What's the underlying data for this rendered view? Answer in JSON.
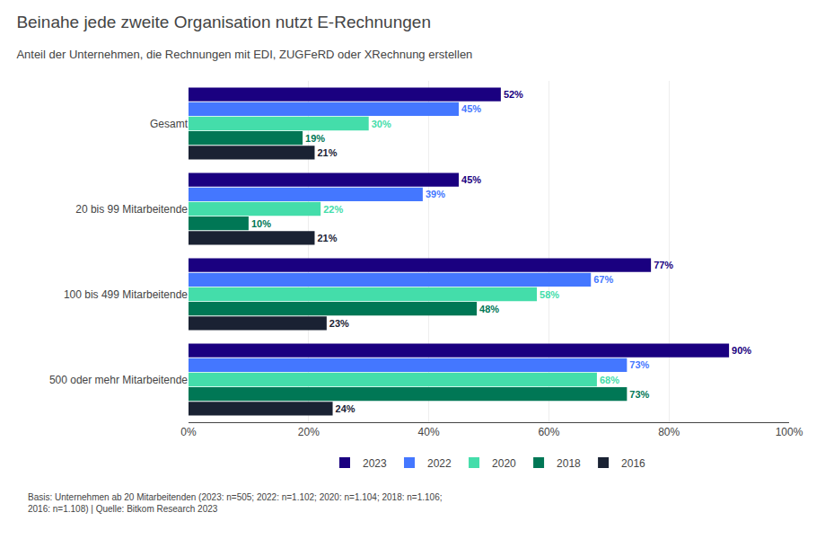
{
  "chart_data": {
    "type": "bar",
    "orientation": "horizontal",
    "title": "Beinahe jede zweite Organisation nutzt E-Rechnungen",
    "subtitle": "Anteil der Unternehmen, die Rechnungen mit EDI, ZUGFeRD oder XRechnung erstellen",
    "categories": [
      "Gesamt",
      "20 bis 99 Mitarbeitende",
      "100 bis 499 Mitarbeitende",
      "500 oder mehr Mitarbeitende"
    ],
    "series": [
      {
        "name": "2023",
        "color": "#1a0080",
        "values": [
          52,
          45,
          77,
          90
        ],
        "value_labels": [
          "52%",
          "45%",
          "77%",
          "90%"
        ]
      },
      {
        "name": "2022",
        "color": "#4477ff",
        "values": [
          45,
          39,
          67,
          73
        ],
        "value_labels": [
          "45%",
          "39%",
          "67%",
          "73%"
        ]
      },
      {
        "name": "2020",
        "color": "#44ddaa",
        "values": [
          30,
          22,
          58,
          68
        ],
        "value_labels": [
          "30%",
          "22%",
          "58%",
          "68%"
        ]
      },
      {
        "name": "2018",
        "color": "#007755",
        "values": [
          19,
          10,
          48,
          73
        ],
        "value_labels": [
          "19%",
          "10%",
          "48%",
          "73%"
        ]
      },
      {
        "name": "2016",
        "color": "#1a2233",
        "values": [
          21,
          21,
          23,
          24
        ],
        "value_labels": [
          "21%",
          "21%",
          "23%",
          "24%"
        ]
      }
    ],
    "xlim": [
      0,
      100
    ],
    "xticks": [
      {
        "value": 0,
        "label": "0%"
      },
      {
        "value": 20,
        "label": "20%"
      },
      {
        "value": 40,
        "label": "40%"
      },
      {
        "value": 60,
        "label": "60%"
      },
      {
        "value": 80,
        "label": "80%"
      },
      {
        "value": 100,
        "label": "100%"
      }
    ],
    "grid": true,
    "data_labels": true,
    "legend": "bottom",
    "annotations": [
      "Basis: Unternehmen ab 20 Mitarbeitenden (2023: n=505; 2022: n=1.102; 2020: n=1.104; 2018: n=1.106;\n2016: n=1.108) | Quelle: Bitkom Research 2023"
    ]
  }
}
